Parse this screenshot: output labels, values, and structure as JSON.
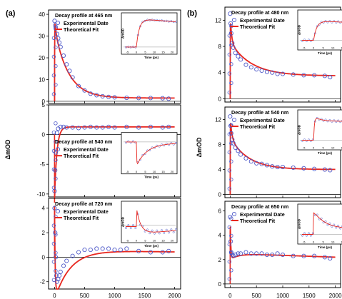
{
  "panels": [
    {
      "id": "a",
      "label": "(a)",
      "ylabel": "ΔmOD",
      "xticks": [
        "0",
        "500",
        "1000",
        "1500",
        "2000"
      ],
      "xlim": [
        -100,
        2100
      ],
      "subplots": [
        {
          "title": "Decay profile at 465 nm",
          "ylim": [
            -1,
            42
          ],
          "yticks": [
            0,
            10,
            20,
            30,
            40
          ],
          "legend": [
            "Experimental Date",
            "Theoretical Fit"
          ],
          "legend_pos": "top-left",
          "chart_data": {
            "type": "scatter",
            "model": {
              "type": "decay",
              "y_max": 39,
              "tau1": 20,
              "tau2": 230,
              "a1": 0.15,
              "offset": 1.5
            },
            "x": [
              0,
              10,
              20,
              40,
              60,
              80,
              100,
              150,
              200,
              250,
              300,
              400,
              500,
              600,
              700,
              800,
              900,
              1000,
              1200,
              1400,
              1600,
              1800,
              1900
            ],
            "y": [
              37,
              35,
              34,
              31,
              29,
              27,
              25,
              21,
              17,
              14,
              11,
              7,
              5,
              3.5,
              2.8,
              2.3,
              2,
              1.8,
              1.6,
              1.5,
              1.5,
              1.4,
              1.2
            ]
          },
          "inset": {
            "xlabel": "Time (ps)",
            "ylabel": "ΔmOD",
            "xticks": [
              "-5",
              "0",
              "5",
              "10",
              "15",
              "20"
            ],
            "xlim": [
              -6,
              22
            ],
            "ylim": [
              -2,
              42
            ],
            "shape": "rise"
          }
        },
        {
          "title": "Decay profile at 540 nm",
          "ylim": [
            -10.5,
            5
          ],
          "yticks": [
            -10,
            -5,
            0,
            5
          ],
          "legend": [
            "Experimental Date",
            "Theoretical Fit"
          ],
          "legend_pos": "middle-left",
          "chart_data": {
            "type": "scatter",
            "model": {
              "type": "bleach",
              "y_min": -10.5,
              "y_plateau": 1.3,
              "tau": 40
            },
            "x": [
              0,
              10,
              20,
              40,
              60,
              100,
              150,
              200,
              300,
              400,
              500,
              600,
              700,
              800,
              900,
              1000,
              1200,
              1400,
              1600,
              1800,
              1900
            ],
            "y": [
              -9.5,
              -6,
              -3,
              0.3,
              1,
              1.3,
              1.3,
              1.2,
              1.2,
              1.1,
              1.2,
              1.3,
              1.2,
              1.2,
              1.3,
              1.2,
              1.3,
              1.2,
              1.3,
              1.2,
              1.3
            ]
          },
          "inset": {
            "xlabel": "Time (ps)",
            "ylabel": "",
            "xticks": [
              "-5",
              "0",
              "5",
              "10",
              "15",
              "20"
            ],
            "xlim": [
              -6,
              22
            ],
            "ylim": [
              -12,
              3
            ],
            "shape": "dip"
          }
        },
        {
          "title": "Decay profile at 720 nm",
          "ylim": [
            -2.6,
            4.8
          ],
          "yticks": [
            -2,
            0,
            2,
            4
          ],
          "legend": [
            "Experimental Date",
            "Theoretical Fit"
          ],
          "legend_pos": "top-left",
          "chart_data": {
            "type": "scatter",
            "model": {
              "type": "crossover",
              "y_max": 4.2,
              "y_min": -2.2,
              "t_min": 40,
              "plateau": 0.6,
              "tau": 300
            },
            "x": [
              0,
              10,
              20,
              30,
              40,
              60,
              80,
              100,
              150,
              200,
              300,
              400,
              500,
              600,
              700,
              800,
              900,
              1000,
              1100,
              1200,
              1400,
              1600,
              1800,
              1900
            ],
            "y": [
              4,
              2,
              0,
              -1.5,
              -2,
              -1.8,
              -1.5,
              -1.2,
              -0.7,
              -0.3,
              0.1,
              0.4,
              0.6,
              0.6,
              0.7,
              0.7,
              0.7,
              0.6,
              0.6,
              0.7,
              0.5,
              0.4,
              0.4,
              0.5
            ]
          },
          "inset": {
            "xlabel": "Time (ps)",
            "ylabel": "ΔmOD",
            "xticks": [
              "-5",
              "0",
              "5",
              "10",
              "15",
              "20"
            ],
            "xlim": [
              -6,
              22
            ],
            "ylim": [
              -2.5,
              4.5
            ],
            "shape": "spike"
          }
        }
      ]
    },
    {
      "id": "b",
      "label": "(b)",
      "ylabel": "ΔmOD",
      "xticks": [
        "0",
        "500",
        "1000",
        "1500",
        "2000"
      ],
      "xlim": [
        -100,
        2100
      ],
      "subplots": [
        {
          "title": "Decay profile at 480 nm",
          "ylim": [
            -0.5,
            14
          ],
          "yticks": [
            0,
            4,
            8,
            12
          ],
          "legend": [
            "Experimental Date",
            "Theoretical Fit"
          ],
          "legend_pos": "top-left",
          "chart_data": {
            "type": "scatter",
            "model": {
              "type": "decay",
              "y_max": 13,
              "tau1": 25,
              "tau2": 400,
              "a1": 0.45,
              "offset": 3.5
            },
            "x": [
              0,
              10,
              20,
              40,
              60,
              100,
              150,
              200,
              300,
              400,
              500,
              600,
              700,
              800,
              900,
              1000,
              1200,
              1400,
              1600,
              1800,
              1900
            ],
            "y": [
              13,
              11.5,
              10,
              8.5,
              7.8,
              7,
              6.5,
              6,
              5.2,
              4.8,
              4.5,
              4.3,
              4.1,
              4,
              3.8,
              3.8,
              3.7,
              3.6,
              3.6,
              3.5,
              3.3
            ]
          },
          "inset": {
            "xlabel": "Time (ps)",
            "ylabel": "ΔmOD",
            "xticks": [
              "-5",
              "0",
              "5",
              "10",
              "15"
            ],
            "xlim": [
              -6,
              17
            ],
            "ylim": [
              -2,
              14
            ],
            "shape": "rise"
          }
        },
        {
          "title": "Decay profile at 540 nm",
          "ylim": [
            -0.5,
            14
          ],
          "yticks": [
            0,
            4,
            8,
            12
          ],
          "legend": [
            "Experimental Date",
            "Theoretical Fit"
          ],
          "legend_pos": "top-left",
          "chart_data": {
            "type": "scatter",
            "model": {
              "type": "decay",
              "y_max": 12.5,
              "tau1": 30,
              "tau2": 350,
              "a1": 0.4,
              "offset": 4
            },
            "x": [
              0,
              10,
              20,
              40,
              60,
              100,
              150,
              200,
              300,
              400,
              500,
              600,
              700,
              800,
              900,
              1000,
              1200,
              1400,
              1600,
              1800,
              1900
            ],
            "y": [
              12.5,
              11,
              9.8,
              8.8,
              8.2,
              7.5,
              7,
              6.4,
              5.8,
              5.3,
              5,
              4.9,
              4.7,
              4.5,
              4.4,
              4.4,
              4.3,
              4.2,
              4.1,
              4,
              3.9
            ]
          },
          "inset": {
            "xlabel": "Time (ps)",
            "ylabel": "ΔmOD",
            "xticks": [
              "-5",
              "0",
              "5",
              "10",
              "15"
            ],
            "xlim": [
              -6,
              17
            ],
            "ylim": [
              -2,
              14
            ],
            "shape": "peak-sag"
          }
        },
        {
          "title": "Decay profile at 650 nm",
          "ylim": [
            -0.3,
            6.8
          ],
          "yticks": [
            0,
            2,
            4,
            6
          ],
          "legend": [
            "Experimental Date",
            "Theoretical Fit"
          ],
          "legend_pos": "top-left",
          "chart_data": {
            "type": "scatter",
            "model": {
              "type": "dip-recover",
              "y_max": 6,
              "y_min": 2,
              "plateau": 2.5,
              "t_min": 50,
              "tau": 600,
              "end": 2.2
            },
            "x": [
              0,
              10,
              20,
              40,
              60,
              100,
              150,
              200,
              300,
              400,
              500,
              600,
              700,
              800,
              900,
              1000,
              1200,
              1400,
              1600,
              1800,
              1900
            ],
            "y": [
              5.5,
              3.5,
              2.6,
              2.4,
              2.3,
              2.4,
              2.5,
              2.5,
              2.6,
              2.5,
              2.5,
              2.5,
              2.4,
              2.4,
              2.5,
              2.4,
              2.3,
              2.3,
              2.3,
              2.2,
              2.1
            ]
          },
          "inset": {
            "xlabel": "Time (ps)",
            "ylabel": "ΔmOD",
            "xticks": [
              "-5",
              "0",
              "5",
              "10",
              "15"
            ],
            "xlim": [
              -6,
              17
            ],
            "ylim": [
              -1,
              7
            ],
            "shape": "spike-slow"
          }
        }
      ]
    }
  ],
  "style": {
    "marker_color": "#4d58c8",
    "fit_color": "#e8271f",
    "axis_color": "#000000"
  }
}
